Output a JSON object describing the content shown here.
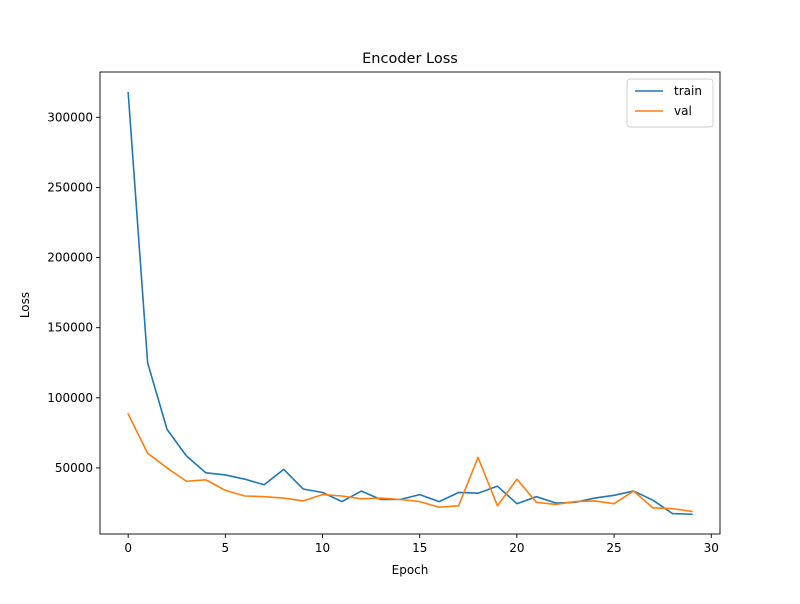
{
  "chart_data": {
    "type": "line",
    "title": "Encoder Loss",
    "xlabel": "Epoch",
    "ylabel": "Loss",
    "xlim": [
      -1.45,
      30.45
    ],
    "ylim": [
      2900,
      332300
    ],
    "x_ticks": [
      0,
      5,
      10,
      15,
      20,
      25,
      30
    ],
    "y_ticks": [
      50000,
      100000,
      150000,
      200000,
      250000,
      300000
    ],
    "grid": false,
    "legend_position": "top-right",
    "x": [
      0,
      1,
      2,
      3,
      4,
      5,
      6,
      7,
      8,
      9,
      10,
      11,
      12,
      13,
      14,
      15,
      16,
      17,
      18,
      19,
      20,
      21,
      22,
      23,
      24,
      25,
      26,
      27,
      28,
      29
    ],
    "series": [
      {
        "name": "train",
        "color": "#1f77b4",
        "values": [
          317500,
          125000,
          77500,
          58500,
          46500,
          45000,
          42000,
          38000,
          49000,
          35000,
          32500,
          26000,
          33500,
          27500,
          27500,
          31000,
          26000,
          32500,
          32000,
          37000,
          24500,
          29500,
          25000,
          25500,
          28500,
          30500,
          33500,
          27000,
          17500,
          17000
        ]
      },
      {
        "name": "val",
        "color": "#ff7f0e",
        "values": [
          88500,
          60500,
          50000,
          40500,
          41500,
          34000,
          30000,
          29500,
          28500,
          26500,
          31000,
          30000,
          28000,
          28500,
          27500,
          26000,
          22000,
          23000,
          57500,
          23000,
          42000,
          25500,
          24000,
          26000,
          26500,
          24500,
          33500,
          21500,
          21000,
          19000
        ]
      }
    ]
  }
}
